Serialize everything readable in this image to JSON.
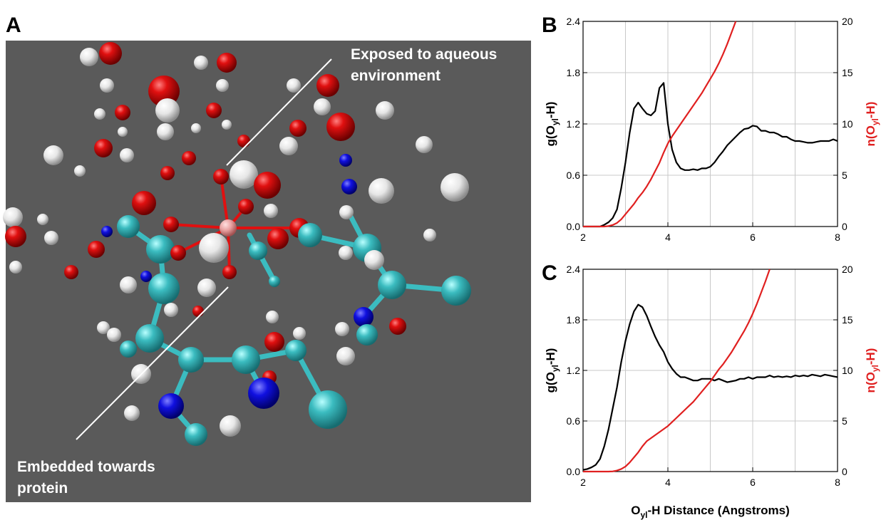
{
  "panel_a": {
    "label": "A",
    "annotations": [
      [
        "Exposed to aqueous",
        "environment"
      ],
      [
        "Embedded towards",
        "protein"
      ]
    ]
  },
  "chart_data": [
    {
      "type": "line",
      "panel_label": "B",
      "ylabel": [
        "g(O",
        "yl",
        "-H)"
      ],
      "y2label": [
        "n(O",
        "yl",
        "-H)"
      ],
      "x": [
        2.0,
        2.1,
        2.2,
        2.3,
        2.4,
        2.5,
        2.6,
        2.7,
        2.8,
        2.9,
        3.0,
        3.1,
        3.2,
        3.3,
        3.4,
        3.5,
        3.6,
        3.7,
        3.8,
        3.9,
        4.0,
        4.1,
        4.2,
        4.3,
        4.4,
        4.5,
        4.6,
        4.7,
        4.8,
        4.9,
        5.0,
        5.1,
        5.2,
        5.3,
        5.4,
        5.5,
        5.6,
        5.7,
        5.8,
        5.9,
        6.0,
        6.1,
        6.2,
        6.3,
        6.4,
        6.5,
        6.6,
        6.7,
        6.8,
        6.9,
        7.0,
        7.1,
        7.2,
        7.3,
        7.4,
        7.5,
        7.6,
        7.7,
        7.8,
        7.9,
        8.0
      ],
      "series": [
        {
          "color": "#000000",
          "values": [
            0,
            0,
            0,
            0,
            0,
            0.02,
            0.05,
            0.1,
            0.2,
            0.45,
            0.75,
            1.1,
            1.38,
            1.45,
            1.38,
            1.32,
            1.3,
            1.35,
            1.62,
            1.68,
            1.2,
            0.9,
            0.75,
            0.68,
            0.66,
            0.66,
            0.67,
            0.66,
            0.68,
            0.68,
            0.7,
            0.75,
            0.82,
            0.88,
            0.95,
            1.0,
            1.05,
            1.1,
            1.14,
            1.15,
            1.18,
            1.17,
            1.12,
            1.12,
            1.1,
            1.1,
            1.08,
            1.05,
            1.05,
            1.02,
            1.0,
            1.0,
            0.99,
            0.98,
            0.98,
            0.99,
            1.0,
            1.0,
            1.0,
            1.02,
            1.0
          ]
        },
        {
          "color": "#e02020",
          "axis": "y2",
          "values": [
            0,
            0,
            0,
            0,
            0,
            0,
            0.05,
            0.15,
            0.35,
            0.7,
            1.2,
            1.7,
            2.2,
            2.8,
            3.3,
            3.9,
            4.6,
            5.4,
            6.2,
            7.2,
            8.1,
            8.8,
            9.4,
            10.0,
            10.6,
            11.2,
            11.8,
            12.4,
            13.0,
            13.7,
            14.4,
            15.1,
            15.9,
            16.8,
            17.8,
            18.9,
            20,
            null,
            null,
            null,
            null,
            null,
            null,
            null,
            null,
            null,
            null,
            null,
            null,
            null,
            null,
            null,
            null,
            null,
            null,
            null,
            null,
            null,
            null,
            null,
            null
          ]
        }
      ],
      "xlim": [
        2,
        8
      ],
      "xticks": [
        2,
        4,
        6,
        8
      ],
      "xminorticks": [
        3,
        5,
        7
      ],
      "ylim": [
        0,
        2.4
      ],
      "yticks": [
        {
          "value": 0,
          "label": "0.0"
        },
        0.6,
        1.2,
        1.8,
        2.4
      ],
      "y2lim": [
        0,
        20
      ],
      "y2ticks": [
        0,
        5,
        10,
        15,
        20
      ],
      "grid": true
    },
    {
      "type": "line",
      "panel_label": "C",
      "ylabel": [
        "g(O",
        "yl",
        "-H)"
      ],
      "y2label": [
        "n(O",
        "yl",
        "-H)"
      ],
      "xlabel": [
        "O",
        "yl",
        "-H Distance (Angstroms)"
      ],
      "x": [
        2.0,
        2.1,
        2.2,
        2.3,
        2.4,
        2.5,
        2.6,
        2.7,
        2.8,
        2.9,
        3.0,
        3.1,
        3.2,
        3.3,
        3.4,
        3.5,
        3.6,
        3.7,
        3.8,
        3.9,
        4.0,
        4.1,
        4.2,
        4.3,
        4.4,
        4.5,
        4.6,
        4.7,
        4.8,
        4.9,
        5.0,
        5.1,
        5.2,
        5.3,
        5.4,
        5.5,
        5.6,
        5.7,
        5.8,
        5.9,
        6.0,
        6.1,
        6.2,
        6.3,
        6.4,
        6.5,
        6.6,
        6.7,
        6.8,
        6.9,
        7.0,
        7.1,
        7.2,
        7.3,
        7.4,
        7.5,
        7.6,
        7.7,
        7.8,
        7.9,
        8.0
      ],
      "series": [
        {
          "color": "#000000",
          "values": [
            0.02,
            0.03,
            0.05,
            0.08,
            0.15,
            0.3,
            0.5,
            0.75,
            1.0,
            1.3,
            1.55,
            1.75,
            1.9,
            1.98,
            1.95,
            1.85,
            1.72,
            1.6,
            1.5,
            1.42,
            1.3,
            1.22,
            1.16,
            1.12,
            1.12,
            1.1,
            1.08,
            1.08,
            1.1,
            1.1,
            1.1,
            1.08,
            1.1,
            1.08,
            1.06,
            1.07,
            1.08,
            1.1,
            1.1,
            1.12,
            1.1,
            1.12,
            1.12,
            1.12,
            1.14,
            1.12,
            1.13,
            1.12,
            1.13,
            1.12,
            1.14,
            1.13,
            1.14,
            1.13,
            1.15,
            1.14,
            1.13,
            1.15,
            1.14,
            1.13,
            1.12
          ]
        },
        {
          "color": "#e02020",
          "axis": "y2",
          "values": [
            0,
            0,
            0,
            0,
            0,
            0,
            0,
            0.02,
            0.1,
            0.25,
            0.5,
            0.9,
            1.4,
            1.9,
            2.5,
            3.0,
            3.3,
            3.6,
            3.9,
            4.2,
            4.5,
            4.9,
            5.3,
            5.7,
            6.1,
            6.5,
            6.9,
            7.4,
            7.9,
            8.4,
            8.9,
            9.5,
            10.1,
            10.6,
            11.2,
            11.8,
            12.5,
            13.2,
            13.9,
            14.7,
            15.6,
            16.6,
            17.7,
            18.8,
            20,
            null,
            null,
            null,
            null,
            null,
            null,
            null,
            null,
            null,
            null,
            null,
            null,
            null,
            null,
            null,
            null
          ]
        }
      ],
      "xlim": [
        2,
        8
      ],
      "xticks": [
        2,
        4,
        6,
        8
      ],
      "xminorticks": [
        3,
        5,
        7
      ],
      "ylim": [
        0,
        2.4
      ],
      "yticks": [
        {
          "value": 0,
          "label": "0.0"
        },
        0.6,
        1.2,
        1.8,
        2.4
      ],
      "y2lim": [
        0,
        20
      ],
      "y2ticks": [
        0,
        5,
        10,
        15,
        20
      ],
      "grid": true
    }
  ]
}
